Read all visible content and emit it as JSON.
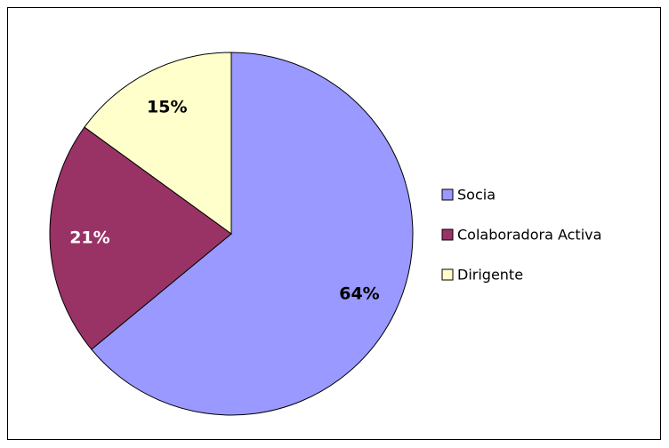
{
  "chart_data": {
    "type": "pie",
    "categories": [
      "Socia",
      "Colaboradora Activa",
      "Dirigente"
    ],
    "values": [
      64,
      21,
      15
    ],
    "value_labels": [
      "64%",
      "21%",
      "15%"
    ],
    "colors": [
      "#9999ff",
      "#993366",
      "#ffffcc"
    ],
    "legend": "right"
  }
}
